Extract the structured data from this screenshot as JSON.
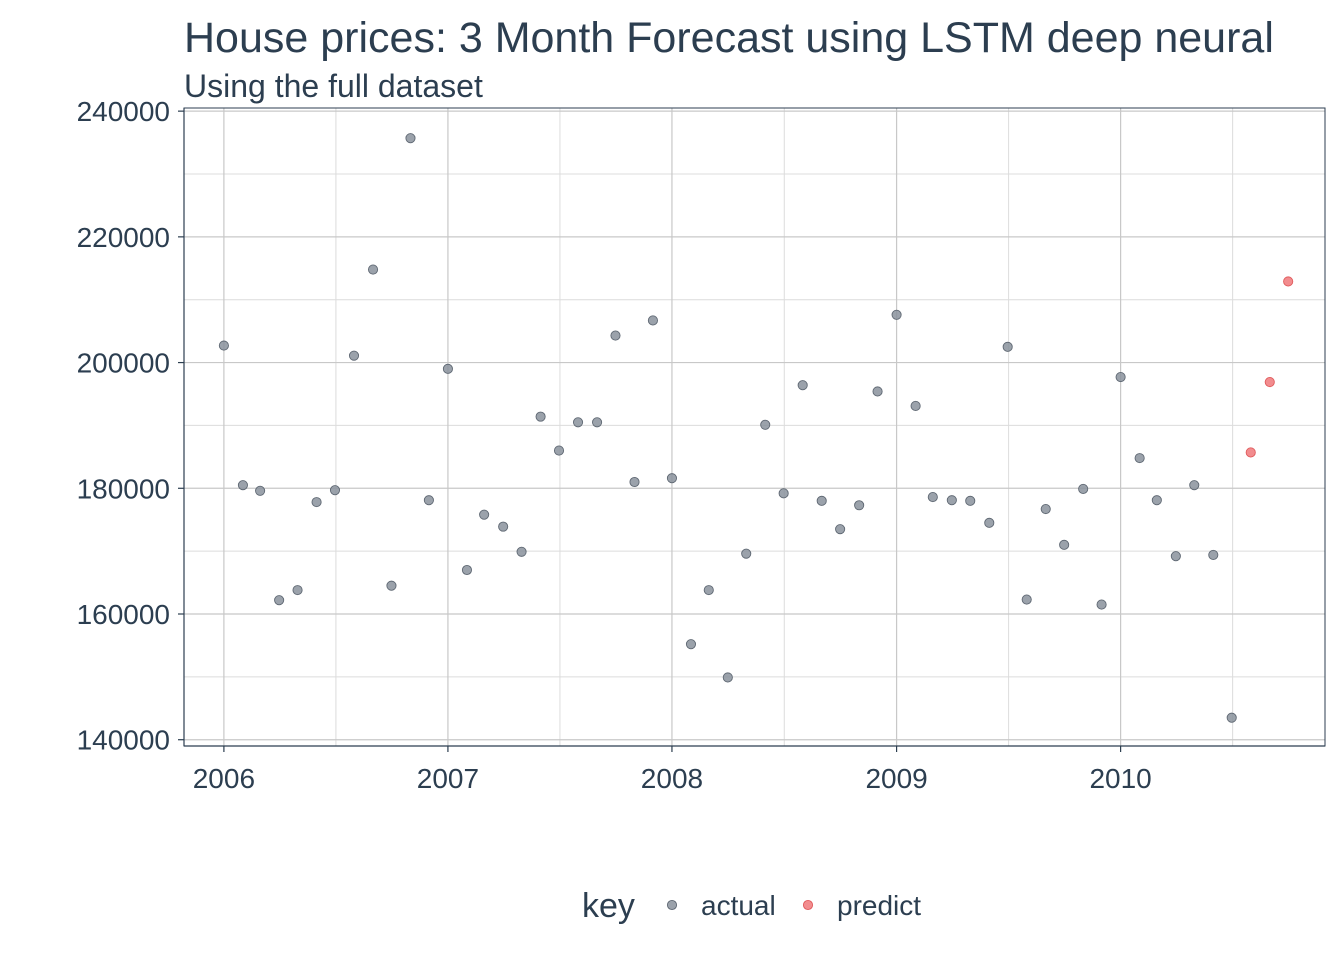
{
  "chart_data": {
    "type": "scatter",
    "title": "House prices: 3 Month Forecast using LSTM deep neural",
    "subtitle": "Using the full dataset",
    "xlabel": "",
    "ylabel": "",
    "x_axis_type": "date",
    "xlim": [
      "2005-10-28",
      "2010-11-30"
    ],
    "ylim": [
      139000,
      240500
    ],
    "x_ticks": [
      "2006",
      "2007",
      "2008",
      "2009",
      "2010"
    ],
    "y_ticks": [
      "140000",
      "160000",
      "180000",
      "200000",
      "220000",
      "240000"
    ],
    "grid": true,
    "legend": {
      "position": "bottom",
      "title": "key"
    },
    "series": [
      {
        "name": "actual",
        "color": "#8a929c",
        "points": [
          [
            "2006-01",
            202700
          ],
          [
            "2006-02",
            180500
          ],
          [
            "2006-03",
            179600
          ],
          [
            "2006-04",
            162200
          ],
          [
            "2006-05",
            163800
          ],
          [
            "2006-06",
            177800
          ],
          [
            "2006-07",
            179700
          ],
          [
            "2006-08",
            201100
          ],
          [
            "2006-09",
            214800
          ],
          [
            "2006-10",
            164500
          ],
          [
            "2006-11",
            235700
          ],
          [
            "2006-12",
            178100
          ],
          [
            "2007-01",
            199000
          ],
          [
            "2007-02",
            167000
          ],
          [
            "2007-03",
            175800
          ],
          [
            "2007-04",
            173900
          ],
          [
            "2007-05",
            169900
          ],
          [
            "2007-06",
            191400
          ],
          [
            "2007-07",
            186000
          ],
          [
            "2007-08",
            190500
          ],
          [
            "2007-09",
            190500
          ],
          [
            "2007-10",
            204300
          ],
          [
            "2007-11",
            181000
          ],
          [
            "2007-12",
            206700
          ],
          [
            "2008-01",
            181600
          ],
          [
            "2008-02",
            155200
          ],
          [
            "2008-03",
            163800
          ],
          [
            "2008-04",
            149900
          ],
          [
            "2008-05",
            169600
          ],
          [
            "2008-06",
            190100
          ],
          [
            "2008-07",
            179200
          ],
          [
            "2008-08",
            196400
          ],
          [
            "2008-09",
            178000
          ],
          [
            "2008-10",
            173500
          ],
          [
            "2008-11",
            177300
          ],
          [
            "2008-12",
            195400
          ],
          [
            "2009-01",
            207600
          ],
          [
            "2009-02",
            193100
          ],
          [
            "2009-03",
            178600
          ],
          [
            "2009-04",
            178100
          ],
          [
            "2009-05",
            178000
          ],
          [
            "2009-06",
            174500
          ],
          [
            "2009-07",
            202500
          ],
          [
            "2009-08",
            162300
          ],
          [
            "2009-09",
            176700
          ],
          [
            "2009-10",
            171000
          ],
          [
            "2009-11",
            179900
          ],
          [
            "2009-12",
            161500
          ],
          [
            "2010-01",
            197700
          ],
          [
            "2010-02",
            184800
          ],
          [
            "2010-03",
            178100
          ],
          [
            "2010-04",
            169200
          ],
          [
            "2010-05",
            180500
          ],
          [
            "2010-06",
            169400
          ],
          [
            "2010-07",
            143500
          ]
        ]
      },
      {
        "name": "predict",
        "color": "#f0787a",
        "points": [
          [
            "2010-08",
            185700
          ],
          [
            "2010-09",
            196900
          ],
          [
            "2010-10",
            212900
          ]
        ]
      }
    ]
  }
}
